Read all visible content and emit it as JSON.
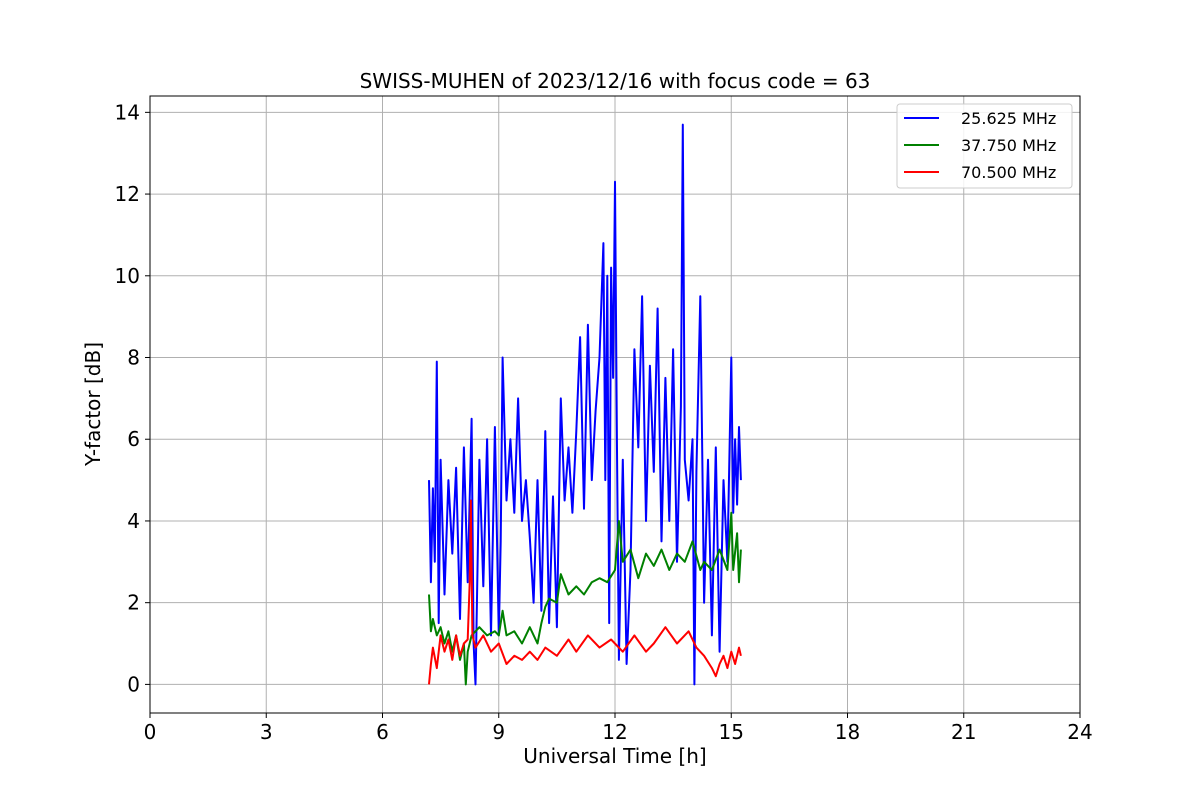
{
  "chart_data": {
    "type": "line",
    "title": "SWISS-MUHEN of 2023/12/16 with focus code = 63",
    "xlabel": "Universal Time [h]",
    "ylabel": "Y-factor [dB]",
    "xlim": [
      0,
      24
    ],
    "ylim": [
      -0.7,
      14.4
    ],
    "xticks": [
      0,
      3,
      6,
      9,
      12,
      15,
      18,
      21,
      24
    ],
    "yticks": [
      0,
      2,
      4,
      6,
      8,
      10,
      12,
      14
    ],
    "grid": true,
    "legend_position": "top-right",
    "series": [
      {
        "name": "25.625 MHz",
        "color": "#0000ff",
        "points": [
          [
            7.2,
            5.0
          ],
          [
            7.25,
            2.5
          ],
          [
            7.3,
            4.8
          ],
          [
            7.35,
            3.0
          ],
          [
            7.4,
            7.9
          ],
          [
            7.45,
            1.5
          ],
          [
            7.5,
            5.5
          ],
          [
            7.6,
            2.2
          ],
          [
            7.7,
            5.0
          ],
          [
            7.8,
            3.2
          ],
          [
            7.9,
            5.3
          ],
          [
            8.0,
            1.6
          ],
          [
            8.1,
            5.8
          ],
          [
            8.2,
            2.5
          ],
          [
            8.3,
            6.5
          ],
          [
            8.35,
            1.0
          ],
          [
            8.4,
            0.0
          ],
          [
            8.5,
            5.5
          ],
          [
            8.6,
            2.4
          ],
          [
            8.7,
            6.0
          ],
          [
            8.8,
            1.2
          ],
          [
            8.9,
            6.3
          ],
          [
            9.0,
            1.2
          ],
          [
            9.05,
            3.5
          ],
          [
            9.1,
            8.0
          ],
          [
            9.2,
            4.5
          ],
          [
            9.3,
            6.0
          ],
          [
            9.4,
            4.2
          ],
          [
            9.5,
            7.0
          ],
          [
            9.6,
            4.0
          ],
          [
            9.7,
            5.0
          ],
          [
            9.8,
            3.6
          ],
          [
            9.9,
            2.0
          ],
          [
            10.0,
            5.0
          ],
          [
            10.1,
            1.8
          ],
          [
            10.2,
            6.2
          ],
          [
            10.3,
            1.5
          ],
          [
            10.4,
            4.6
          ],
          [
            10.5,
            1.4
          ],
          [
            10.6,
            7.0
          ],
          [
            10.7,
            4.5
          ],
          [
            10.8,
            5.8
          ],
          [
            10.9,
            4.2
          ],
          [
            11.0,
            6.2
          ],
          [
            11.1,
            8.5
          ],
          [
            11.2,
            4.3
          ],
          [
            11.3,
            8.8
          ],
          [
            11.4,
            5.0
          ],
          [
            11.5,
            6.7
          ],
          [
            11.6,
            8.0
          ],
          [
            11.7,
            10.8
          ],
          [
            11.75,
            5.0
          ],
          [
            11.8,
            10.0
          ],
          [
            11.85,
            1.5
          ],
          [
            11.9,
            10.2
          ],
          [
            11.95,
            7.5
          ],
          [
            12.0,
            12.3
          ],
          [
            12.05,
            6.0
          ],
          [
            12.1,
            0.6
          ],
          [
            12.2,
            5.5
          ],
          [
            12.3,
            0.5
          ],
          [
            12.4,
            2.8
          ],
          [
            12.5,
            8.2
          ],
          [
            12.6,
            5.8
          ],
          [
            12.7,
            9.5
          ],
          [
            12.8,
            4.0
          ],
          [
            12.9,
            7.8
          ],
          [
            13.0,
            5.2
          ],
          [
            13.1,
            9.2
          ],
          [
            13.2,
            3.5
          ],
          [
            13.3,
            7.5
          ],
          [
            13.4,
            4.0
          ],
          [
            13.5,
            8.2
          ],
          [
            13.6,
            3.0
          ],
          [
            13.7,
            6.8
          ],
          [
            13.75,
            13.7
          ],
          [
            13.8,
            5.5
          ],
          [
            13.9,
            4.5
          ],
          [
            14.0,
            6.0
          ],
          [
            14.05,
            0.0
          ],
          [
            14.1,
            5.2
          ],
          [
            14.2,
            9.5
          ],
          [
            14.3,
            2.0
          ],
          [
            14.4,
            5.5
          ],
          [
            14.5,
            1.2
          ],
          [
            14.6,
            5.8
          ],
          [
            14.7,
            0.8
          ],
          [
            14.8,
            5.0
          ],
          [
            14.9,
            3.0
          ],
          [
            15.0,
            8.0
          ],
          [
            15.05,
            4.2
          ],
          [
            15.1,
            6.0
          ],
          [
            15.15,
            4.4
          ],
          [
            15.2,
            6.3
          ],
          [
            15.25,
            5.0
          ]
        ]
      },
      {
        "name": "37.750 MHz",
        "color": "#008000",
        "points": [
          [
            7.2,
            2.2
          ],
          [
            7.25,
            1.3
          ],
          [
            7.3,
            1.6
          ],
          [
            7.4,
            1.2
          ],
          [
            7.5,
            1.4
          ],
          [
            7.6,
            1.0
          ],
          [
            7.7,
            1.3
          ],
          [
            7.8,
            0.8
          ],
          [
            7.9,
            1.2
          ],
          [
            8.0,
            0.6
          ],
          [
            8.1,
            1.0
          ],
          [
            8.15,
            0.0
          ],
          [
            8.2,
            0.8
          ],
          [
            8.3,
            1.2
          ],
          [
            8.5,
            1.4
          ],
          [
            8.7,
            1.2
          ],
          [
            8.9,
            1.3
          ],
          [
            9.0,
            1.2
          ],
          [
            9.1,
            1.8
          ],
          [
            9.2,
            1.2
          ],
          [
            9.4,
            1.3
          ],
          [
            9.6,
            1.0
          ],
          [
            9.8,
            1.4
          ],
          [
            10.0,
            1.0
          ],
          [
            10.1,
            1.5
          ],
          [
            10.2,
            1.9
          ],
          [
            10.3,
            2.1
          ],
          [
            10.5,
            2.0
          ],
          [
            10.6,
            2.7
          ],
          [
            10.8,
            2.2
          ],
          [
            11.0,
            2.4
          ],
          [
            11.2,
            2.2
          ],
          [
            11.4,
            2.5
          ],
          [
            11.6,
            2.6
          ],
          [
            11.8,
            2.5
          ],
          [
            12.0,
            2.8
          ],
          [
            12.1,
            4.0
          ],
          [
            12.2,
            3.0
          ],
          [
            12.4,
            3.3
          ],
          [
            12.6,
            2.6
          ],
          [
            12.8,
            3.2
          ],
          [
            13.0,
            2.9
          ],
          [
            13.2,
            3.3
          ],
          [
            13.4,
            2.8
          ],
          [
            13.6,
            3.2
          ],
          [
            13.8,
            3.0
          ],
          [
            14.0,
            3.5
          ],
          [
            14.2,
            2.8
          ],
          [
            14.3,
            3.0
          ],
          [
            14.5,
            2.8
          ],
          [
            14.7,
            3.3
          ],
          [
            14.9,
            2.8
          ],
          [
            15.0,
            4.2
          ],
          [
            15.05,
            2.8
          ],
          [
            15.15,
            3.7
          ],
          [
            15.2,
            2.5
          ],
          [
            15.25,
            3.3
          ]
        ]
      },
      {
        "name": "70.500 MHz",
        "color": "#ff0000",
        "points": [
          [
            7.2,
            0.0
          ],
          [
            7.25,
            0.5
          ],
          [
            7.3,
            0.9
          ],
          [
            7.4,
            0.4
          ],
          [
            7.5,
            1.2
          ],
          [
            7.6,
            0.8
          ],
          [
            7.7,
            1.1
          ],
          [
            7.8,
            0.6
          ],
          [
            7.9,
            1.2
          ],
          [
            8.0,
            0.7
          ],
          [
            8.1,
            1.0
          ],
          [
            8.2,
            1.1
          ],
          [
            8.25,
            2.5
          ],
          [
            8.28,
            4.5
          ],
          [
            8.32,
            1.2
          ],
          [
            8.4,
            0.9
          ],
          [
            8.6,
            1.2
          ],
          [
            8.8,
            0.8
          ],
          [
            9.0,
            1.0
          ],
          [
            9.2,
            0.5
          ],
          [
            9.4,
            0.7
          ],
          [
            9.6,
            0.6
          ],
          [
            9.8,
            0.8
          ],
          [
            10.0,
            0.6
          ],
          [
            10.2,
            0.9
          ],
          [
            10.5,
            0.7
          ],
          [
            10.8,
            1.1
          ],
          [
            11.0,
            0.8
          ],
          [
            11.3,
            1.2
          ],
          [
            11.6,
            0.9
          ],
          [
            11.9,
            1.1
          ],
          [
            12.2,
            0.8
          ],
          [
            12.5,
            1.2
          ],
          [
            12.8,
            0.8
          ],
          [
            13.0,
            1.0
          ],
          [
            13.3,
            1.4
          ],
          [
            13.6,
            1.0
          ],
          [
            13.9,
            1.3
          ],
          [
            14.1,
            0.9
          ],
          [
            14.3,
            0.7
          ],
          [
            14.5,
            0.4
          ],
          [
            14.6,
            0.2
          ],
          [
            14.7,
            0.5
          ],
          [
            14.8,
            0.7
          ],
          [
            14.9,
            0.4
          ],
          [
            15.0,
            0.8
          ],
          [
            15.1,
            0.5
          ],
          [
            15.2,
            0.9
          ],
          [
            15.25,
            0.7
          ]
        ]
      }
    ]
  }
}
